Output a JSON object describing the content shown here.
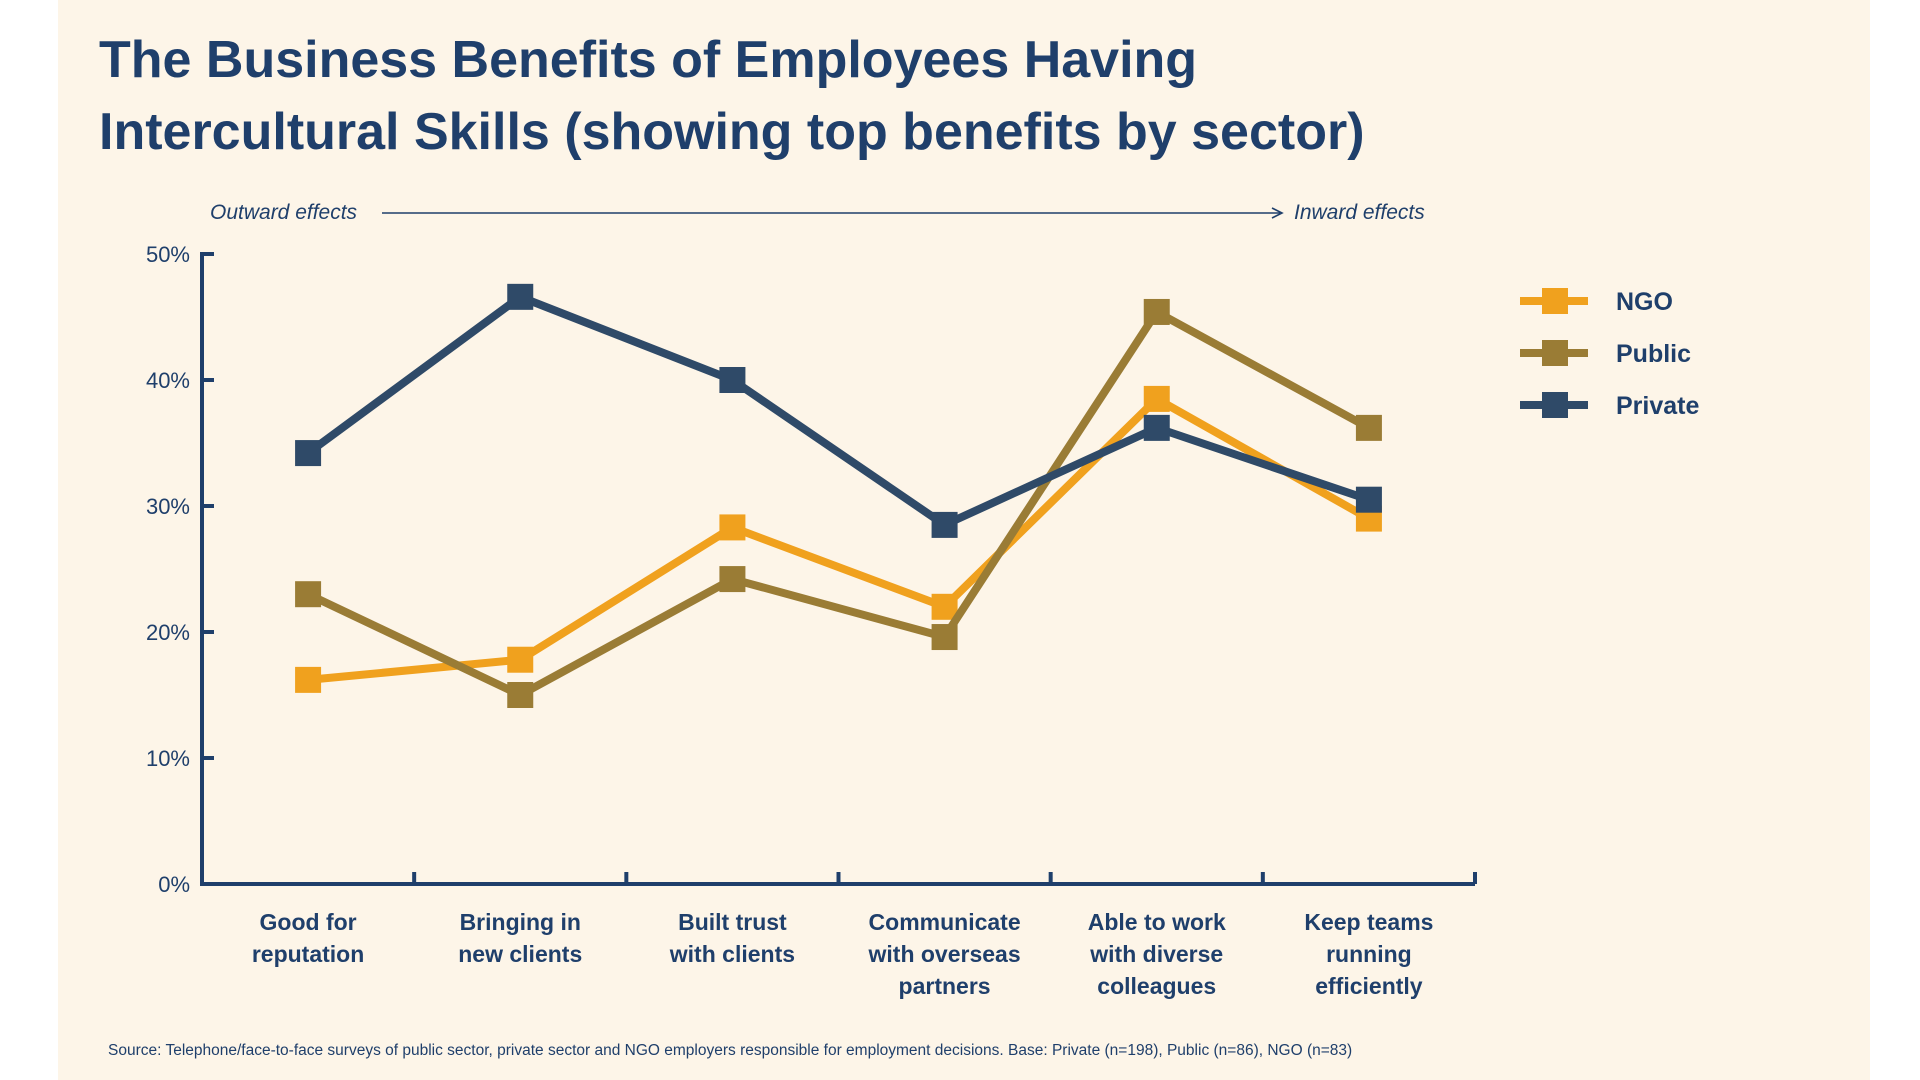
{
  "title_lines": [
    "The Business Benefits of Employees Having",
    "Intercultural Skills (showing top benefits by sector)"
  ],
  "annotations": {
    "left": "Outward effects",
    "right": "Inward effects"
  },
  "source": "Source: Telephone/face-to-face surveys of public sector, private sector and NGO employers responsible for employment decisions. Base: Private (n=198), Public (n=86), NGO (n=83)",
  "colors": {
    "background": "#fdf5e8",
    "text": "#1f3f6b",
    "axis": "#1f3f6b"
  },
  "chart_data": {
    "type": "line",
    "categories": [
      [
        "Good for",
        "reputation"
      ],
      [
        "Bringing in",
        "new clients"
      ],
      [
        "Built trust",
        "with clients"
      ],
      [
        "Communicate",
        "with overseas",
        "partners"
      ],
      [
        "Able to work",
        "with diverse",
        "colleagues"
      ],
      [
        "Keep teams",
        "running",
        "efficiently"
      ]
    ],
    "y_ticks": [
      "0%",
      "10%",
      "20%",
      "30%",
      "40%",
      "50%"
    ],
    "ylim": [
      0,
      50
    ],
    "legend_position": "right",
    "series": [
      {
        "name": "NGO",
        "color": "#f0a11e",
        "values": [
          16.2,
          17.8,
          28.3,
          22.0,
          38.5,
          29.0
        ]
      },
      {
        "name": "Public",
        "color": "#9a7c35",
        "values": [
          23.0,
          15.0,
          24.2,
          19.6,
          45.4,
          36.2
        ]
      },
      {
        "name": "Private",
        "color": "#2f4a68",
        "values": [
          34.2,
          46.6,
          40.0,
          28.5,
          36.2,
          30.5
        ]
      }
    ]
  }
}
